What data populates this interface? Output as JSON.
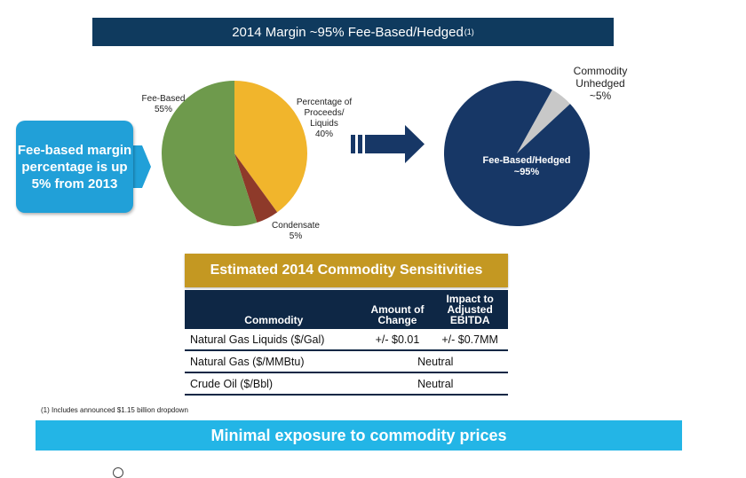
{
  "title": {
    "text": "2014 Margin ~95% Fee-Based/Hedged",
    "footnote_marker": "(1)"
  },
  "callout": {
    "text": "Fee-based margin percentage is up 5% from 2013"
  },
  "colors": {
    "fee_based": "#6e9a4c",
    "proceeds_liquids": "#f1b52c",
    "condensate": "#8e3a2a",
    "fee_based_hedged": "#173766",
    "commodity_unhedged": "#c8c8c8"
  },
  "chart_data": [
    {
      "type": "pie",
      "slices": [
        {
          "label": "Percentage of Proceeds/ Liquids",
          "value": 40,
          "value_label": "40%"
        },
        {
          "label": "Condensate",
          "value": 5,
          "value_label": "5%"
        },
        {
          "label": "Fee-Based",
          "value": 55,
          "value_label": "55%"
        }
      ]
    },
    {
      "type": "pie",
      "slices": [
        {
          "label": "Commodity Unhedged",
          "value": 5,
          "value_label": "~5%"
        },
        {
          "label": "Fee-Based/Hedged",
          "value": 95,
          "value_label": "~95%"
        }
      ]
    }
  ],
  "sensitivities": {
    "title": "Estimated 2014 Commodity Sensitivities",
    "headers": [
      "Commodity",
      "Amount of Change",
      "Impact to Adjusted EBITDA"
    ],
    "rows": [
      {
        "commodity": "Natural Gas Liquids ($/Gal)",
        "amount": "+/- $0.01",
        "impact": "+/- $0.7MM"
      },
      {
        "commodity": "Natural Gas ($/MMBtu)",
        "merged": "Neutral"
      },
      {
        "commodity": "Crude Oil ($/Bbl)",
        "merged": "Neutral"
      }
    ]
  },
  "footnote": "(1) Includes announced $1.15 billion dropdown",
  "bottom_banner": "Minimal exposure to commodity prices"
}
